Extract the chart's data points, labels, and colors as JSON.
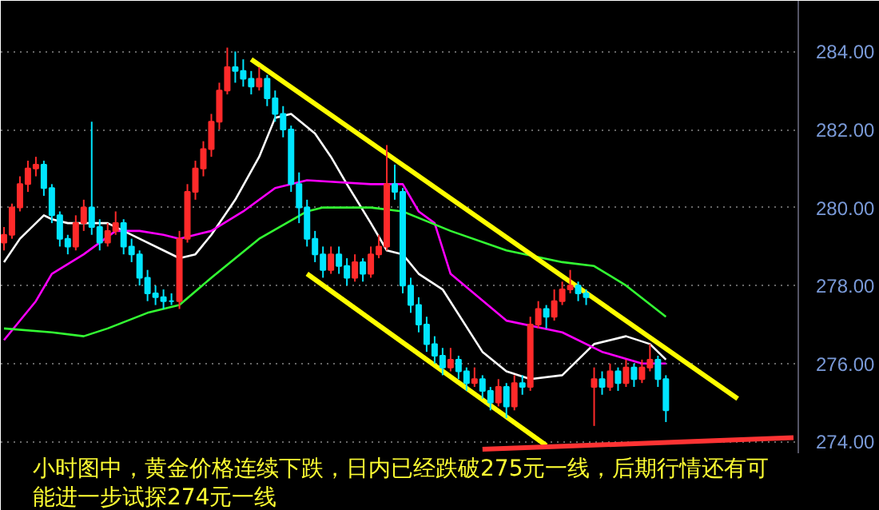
{
  "chart_data": {
    "type": "candlestick",
    "categories": [
      null,
      null,
      null,
      null,
      null,
      null,
      null,
      null,
      null,
      null,
      null,
      null,
      null,
      null,
      null,
      null,
      null,
      null,
      null,
      null,
      null,
      null,
      null,
      null,
      null,
      null,
      null,
      null,
      null,
      null,
      null,
      null,
      null,
      null,
      null,
      null,
      null,
      null,
      null,
      null,
      null,
      null,
      null,
      null,
      null,
      null,
      null,
      null,
      null,
      null,
      null,
      null,
      null,
      null,
      null,
      null,
      null,
      null,
      null,
      null,
      null,
      null,
      null,
      null,
      null,
      null,
      null,
      null,
      null,
      null,
      null,
      null,
      null,
      null,
      null,
      null,
      null,
      null,
      null,
      null,
      null,
      null,
      null,
      null,
      null,
      null,
      null,
      null,
      null,
      null,
      null,
      null,
      null,
      null,
      null,
      null,
      null,
      null,
      null,
      null
    ],
    "ohlc": [
      [
        279.1,
        279.5,
        278.9,
        279.3
      ],
      [
        279.3,
        280.1,
        279.2,
        280.0
      ],
      [
        280.0,
        280.8,
        279.9,
        280.6
      ],
      [
        280.6,
        281.2,
        280.4,
        281.0
      ],
      [
        281.0,
        281.3,
        280.8,
        281.1
      ],
      [
        281.1,
        281.2,
        280.3,
        280.5
      ],
      [
        280.5,
        280.6,
        279.6,
        279.8
      ],
      [
        279.8,
        279.9,
        279.0,
        279.2
      ],
      [
        279.2,
        279.3,
        278.8,
        279.0
      ],
      [
        279.0,
        279.8,
        278.9,
        279.6
      ],
      [
        279.6,
        280.2,
        279.4,
        280.0
      ],
      [
        280.0,
        282.2,
        279.3,
        279.5
      ],
      [
        279.5,
        279.7,
        278.9,
        279.1
      ],
      [
        279.1,
        279.6,
        279.0,
        279.4
      ],
      [
        279.4,
        279.9,
        279.3,
        279.6
      ],
      [
        279.6,
        279.7,
        278.8,
        279.0
      ],
      [
        279.0,
        279.2,
        278.6,
        278.8
      ],
      [
        278.8,
        278.9,
        278.0,
        278.2
      ],
      [
        278.2,
        278.4,
        277.6,
        277.8
      ],
      [
        277.8,
        278.0,
        277.5,
        277.7
      ],
      [
        277.7,
        277.9,
        277.4,
        277.6
      ],
      [
        277.6,
        277.8,
        277.5,
        277.6
      ],
      [
        277.6,
        279.4,
        277.4,
        279.2
      ],
      [
        279.2,
        280.6,
        279.1,
        280.4
      ],
      [
        280.4,
        281.2,
        280.2,
        281.0
      ],
      [
        281.0,
        281.7,
        280.8,
        281.5
      ],
      [
        281.5,
        282.4,
        281.3,
        282.2
      ],
      [
        282.2,
        283.2,
        282.0,
        283.0
      ],
      [
        283.0,
        284.1,
        282.9,
        283.6
      ],
      [
        283.6,
        284.0,
        283.2,
        283.5
      ],
      [
        283.5,
        283.8,
        283.1,
        283.3
      ],
      [
        283.3,
        283.5,
        282.9,
        283.1
      ],
      [
        283.1,
        283.6,
        283.0,
        283.3
      ],
      [
        283.3,
        283.4,
        282.6,
        282.8
      ],
      [
        282.8,
        283.0,
        282.2,
        282.4
      ],
      [
        282.4,
        282.6,
        281.8,
        282.0
      ],
      [
        282.0,
        282.1,
        280.4,
        280.6
      ],
      [
        280.6,
        280.9,
        279.6,
        280.0
      ],
      [
        280.0,
        280.2,
        279.0,
        279.2
      ],
      [
        279.2,
        279.4,
        278.6,
        278.8
      ],
      [
        278.8,
        279.0,
        278.2,
        278.4
      ],
      [
        278.4,
        279.0,
        278.3,
        278.8
      ],
      [
        278.8,
        279.0,
        278.3,
        278.5
      ],
      [
        278.5,
        278.7,
        278.0,
        278.2
      ],
      [
        278.2,
        278.8,
        278.1,
        278.6
      ],
      [
        278.6,
        278.7,
        278.1,
        278.3
      ],
      [
        278.3,
        279.0,
        278.2,
        278.8
      ],
      [
        278.8,
        279.3,
        278.7,
        279.0
      ],
      [
        279.0,
        281.6,
        278.9,
        280.6
      ],
      [
        280.6,
        281.1,
        280.2,
        280.4
      ],
      [
        280.4,
        280.5,
        277.8,
        278.0
      ],
      [
        278.0,
        278.2,
        277.3,
        277.5
      ],
      [
        277.5,
        277.7,
        276.8,
        277.0
      ],
      [
        277.0,
        277.2,
        276.3,
        276.5
      ],
      [
        276.5,
        276.7,
        276.0,
        276.2
      ],
      [
        276.2,
        276.4,
        275.7,
        275.9
      ],
      [
        275.9,
        276.4,
        275.8,
        276.1
      ],
      [
        276.1,
        276.2,
        275.6,
        275.8
      ],
      [
        275.8,
        275.9,
        275.3,
        275.5
      ],
      [
        275.5,
        275.9,
        275.4,
        275.6
      ],
      [
        275.6,
        275.7,
        275.1,
        275.3
      ],
      [
        275.3,
        275.4,
        274.8,
        275.0
      ],
      [
        275.0,
        275.6,
        274.9,
        275.4
      ],
      [
        275.4,
        275.5,
        274.6,
        274.9
      ],
      [
        274.9,
        275.7,
        274.8,
        275.5
      ],
      [
        275.5,
        275.7,
        275.2,
        275.4
      ],
      [
        275.4,
        277.2,
        275.3,
        277.0
      ],
      [
        277.0,
        277.6,
        276.9,
        277.4
      ],
      [
        277.4,
        277.5,
        276.9,
        277.2
      ],
      [
        277.2,
        277.9,
        277.1,
        277.6
      ],
      [
        277.6,
        278.1,
        277.5,
        277.9
      ],
      [
        277.9,
        278.4,
        277.8,
        278.0
      ],
      [
        278.0,
        278.1,
        277.6,
        277.8
      ],
      [
        277.8,
        277.9,
        277.5,
        277.7
      ],
      [
        275.4,
        275.9,
        274.4,
        275.6
      ],
      [
        275.6,
        275.8,
        275.2,
        275.4
      ],
      [
        275.4,
        276.0,
        275.3,
        275.8
      ],
      [
        275.8,
        275.9,
        275.3,
        275.5
      ],
      [
        275.5,
        276.1,
        275.4,
        275.9
      ],
      [
        275.9,
        276.0,
        275.4,
        275.6
      ],
      [
        275.6,
        276.1,
        275.5,
        275.9
      ],
      [
        275.9,
        276.5,
        275.8,
        276.1
      ],
      [
        276.1,
        276.2,
        275.4,
        275.6
      ],
      [
        275.6,
        275.7,
        274.5,
        274.8
      ],
      null,
      null,
      null,
      null,
      null,
      null,
      null,
      null,
      null,
      null,
      null,
      null,
      null,
      null,
      null,
      null
    ],
    "colors": [
      "#ff2a2a",
      "#ff2a2a",
      "#ff2a2a",
      "#ff2a2a",
      "#ff2a2a",
      "#00e5ff",
      "#00e5ff",
      "#00e5ff",
      "#00e5ff",
      "#ff2a2a",
      "#ff2a2a",
      "#00e5ff",
      "#00e5ff",
      "#ff2a2a",
      "#ff2a2a",
      "#00e5ff",
      "#00e5ff",
      "#00e5ff",
      "#00e5ff",
      "#00e5ff",
      "#00e5ff",
      "#00e5ff",
      "#ff2a2a",
      "#ff2a2a",
      "#ff2a2a",
      "#ff2a2a",
      "#ff2a2a",
      "#ff2a2a",
      "#ff2a2a",
      "#00e5ff",
      "#00e5ff",
      "#00e5ff",
      "#ff2a2a",
      "#00e5ff",
      "#00e5ff",
      "#00e5ff",
      "#00e5ff",
      "#00e5ff",
      "#00e5ff",
      "#00e5ff",
      "#00e5ff",
      "#ff2a2a",
      "#00e5ff",
      "#00e5ff",
      "#ff2a2a",
      "#00e5ff",
      "#ff2a2a",
      "#ff2a2a",
      "#ff2a2a",
      "#00e5ff",
      "#00e5ff",
      "#00e5ff",
      "#00e5ff",
      "#00e5ff",
      "#00e5ff",
      "#00e5ff",
      "#ff2a2a",
      "#00e5ff",
      "#00e5ff",
      "#ff2a2a",
      "#00e5ff",
      "#00e5ff",
      "#ff2a2a",
      "#00e5ff",
      "#ff2a2a",
      "#00e5ff",
      "#ff2a2a",
      "#ff2a2a",
      "#00e5ff",
      "#ff2a2a",
      "#ff2a2a",
      "#ff2a2a",
      "#00e5ff",
      "#00e5ff",
      "#ff2a2a",
      "#00e5ff",
      "#ff2a2a",
      "#00e5ff",
      "#ff2a2a",
      "#00e5ff",
      "#ff2a2a",
      "#ff2a2a",
      "#00e5ff",
      "#00e5ff",
      null,
      null,
      null,
      null,
      null,
      null,
      null,
      null,
      null,
      null,
      null,
      null,
      null,
      null,
      null,
      null
    ],
    "series": [
      {
        "type": "line",
        "color": "#ffffff",
        "values": [
          278.6,
          null,
          279.2,
          null,
          null,
          279.8,
          279.7,
          null,
          279.6,
          null,
          null,
          null,
          null,
          279.6,
          null,
          null,
          null,
          279.2,
          null,
          null,
          278.9,
          null,
          278.7,
          null,
          278.8,
          null,
          279.3,
          null,
          null,
          280.2,
          null,
          null,
          281.3,
          null,
          282.3,
          null,
          282.4,
          null,
          null,
          281.9,
          null,
          281.3,
          null,
          280.6,
          null,
          null,
          279.6,
          null,
          278.9,
          null,
          278.8,
          null,
          278.3,
          null,
          null,
          277.9,
          null,
          null,
          null,
          null,
          276.3,
          null,
          null,
          275.8,
          null,
          null,
          275.6,
          null,
          null,
          null,
          275.7,
          null,
          null,
          null,
          276.5,
          null,
          null,
          null,
          276.7,
          null,
          null,
          276.5,
          null,
          276.1,
          null,
          null,
          null,
          null,
          null,
          null,
          null,
          null,
          null,
          null,
          null,
          null,
          null,
          null,
          null,
          null
        ]
      },
      {
        "type": "line",
        "color": "#ff00ff",
        "values": [
          276.6,
          null,
          null,
          null,
          277.6,
          null,
          278.3,
          null,
          null,
          null,
          278.8,
          null,
          null,
          null,
          279.4,
          null,
          null,
          279.4,
          null,
          null,
          279.3,
          null,
          279.2,
          null,
          null,
          null,
          279.4,
          null,
          null,
          null,
          279.9,
          null,
          null,
          null,
          280.5,
          null,
          null,
          null,
          280.7,
          null,
          null,
          null,
          null,
          null,
          null,
          null,
          280.6,
          null,
          null,
          null,
          280.6,
          null,
          279.9,
          null,
          279.6,
          null,
          278.3,
          null,
          null,
          null,
          null,
          null,
          null,
          277.1,
          null,
          null,
          null,
          null,
          null,
          null,
          276.8,
          null,
          null,
          null,
          null,
          276.3,
          null,
          null,
          null,
          null,
          276.0,
          null,
          null,
          276.0,
          null,
          null,
          null,
          null,
          null,
          null,
          null,
          null,
          null,
          null,
          null,
          null,
          null,
          null,
          null,
          null
        ]
      },
      {
        "type": "line",
        "color": "#33ff33",
        "values": [
          276.9,
          null,
          null,
          null,
          null,
          null,
          276.8,
          null,
          null,
          null,
          276.7,
          null,
          null,
          276.9,
          null,
          null,
          null,
          null,
          277.3,
          null,
          null,
          null,
          277.5,
          null,
          null,
          null,
          278.2,
          null,
          null,
          null,
          null,
          null,
          279.2,
          null,
          null,
          null,
          null,
          null,
          279.9,
          null,
          280.0,
          null,
          null,
          null,
          null,
          null,
          280.0,
          null,
          null,
          null,
          279.9,
          null,
          null,
          null,
          null,
          null,
          279.4,
          null,
          null,
          null,
          null,
          null,
          null,
          278.9,
          null,
          null,
          null,
          null,
          null,
          null,
          278.6,
          null,
          null,
          null,
          278.5,
          null,
          null,
          null,
          278.0,
          null,
          null,
          null,
          null,
          277.2,
          null,
          null,
          null,
          null,
          null,
          null,
          null,
          null,
          null,
          null,
          null,
          null,
          null,
          null,
          null,
          null
        ]
      },
      {
        "type": "line",
        "color": "#ffff00",
        "values": [
          null,
          null,
          null,
          null,
          null,
          null,
          null,
          null,
          null,
          null,
          null,
          null,
          null,
          null,
          null,
          null,
          null,
          null,
          null,
          null,
          null,
          null,
          null,
          null,
          null,
          null,
          null,
          null,
          null,
          null,
          null,
          283.8,
          null,
          null,
          null,
          null,
          null,
          null,
          null,
          null,
          null,
          null,
          null,
          null,
          null,
          null,
          null,
          null,
          null,
          null,
          null,
          null,
          null,
          null,
          null,
          null,
          null,
          null,
          null,
          null,
          null,
          null,
          null,
          null,
          null,
          null,
          null,
          null,
          null,
          null,
          null,
          null,
          null,
          null,
          null,
          null,
          null,
          null,
          null,
          null,
          null,
          null,
          null,
          null,
          null,
          null,
          null,
          null,
          null,
          null,
          null,
          null,
          275.1,
          null,
          null,
          null,
          null,
          null,
          null,
          null
        ]
      },
      {
        "type": "line",
        "color": "#ffff00",
        "values": [
          null,
          null,
          null,
          null,
          null,
          null,
          null,
          null,
          null,
          null,
          null,
          null,
          null,
          null,
          null,
          null,
          null,
          null,
          null,
          null,
          null,
          null,
          null,
          null,
          null,
          null,
          null,
          null,
          null,
          null,
          null,
          null,
          null,
          null,
          null,
          null,
          null,
          null,
          278.3,
          null,
          null,
          null,
          null,
          null,
          null,
          null,
          null,
          null,
          null,
          null,
          null,
          null,
          null,
          null,
          null,
          null,
          null,
          null,
          null,
          null,
          null,
          null,
          null,
          null,
          null,
          null,
          null,
          null,
          273.9,
          null,
          null,
          null,
          null,
          null,
          null,
          null,
          null,
          null,
          null,
          null,
          null,
          null,
          null,
          null,
          null,
          null,
          null,
          null,
          null,
          null,
          null,
          null,
          null,
          null,
          null,
          null,
          null,
          null,
          null,
          null
        ]
      },
      {
        "type": "line",
        "color": "#ff3333",
        "values": [
          null,
          null,
          null,
          null,
          null,
          null,
          null,
          null,
          null,
          null,
          null,
          null,
          null,
          null,
          null,
          null,
          null,
          null,
          null,
          null,
          null,
          null,
          null,
          null,
          null,
          null,
          null,
          null,
          null,
          null,
          null,
          null,
          null,
          null,
          null,
          null,
          null,
          null,
          null,
          null,
          null,
          null,
          null,
          null,
          null,
          null,
          null,
          null,
          null,
          null,
          null,
          null,
          null,
          null,
          null,
          null,
          null,
          null,
          null,
          null,
          273.8,
          null,
          null,
          null,
          null,
          null,
          null,
          null,
          null,
          null,
          null,
          null,
          null,
          null,
          null,
          null,
          null,
          null,
          null,
          null,
          null,
          null,
          null,
          null,
          null,
          null,
          null,
          null,
          null,
          null,
          null,
          null,
          null,
          null,
          null,
          null,
          null,
          null,
          null,
          274.1
        ]
      }
    ],
    "ylim": [
      273.7,
      285.3
    ],
    "yticks": [
      {
        "value": 274,
        "label": "274.00"
      },
      {
        "value": 276,
        "label": "276.00"
      },
      {
        "value": 278,
        "label": "278.00"
      },
      {
        "value": 280,
        "label": "280.00"
      },
      {
        "value": 282,
        "label": "282.00"
      },
      {
        "value": 284,
        "label": "284.00"
      }
    ],
    "grid": "y",
    "tick_labels": "y",
    "annotations": [
      "小时图中，黄金价格连续下跌，日内已经跌破275元一线，后期行情还有可能进一步试探274元一线"
    ]
  }
}
